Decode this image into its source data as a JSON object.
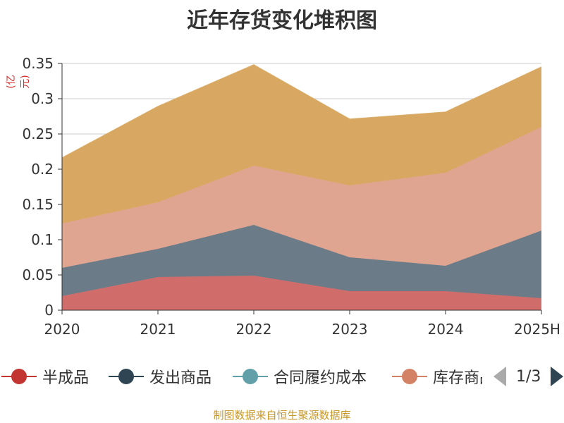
{
  "title": "近年存货变化堆积图",
  "unit_label": "(亿元)",
  "footer": "制图数据来自恒生聚源数据库",
  "legend": {
    "items": [
      {
        "label": "半成品",
        "color": "#c23531"
      },
      {
        "label": "发出商品",
        "color": "#2f4554"
      },
      {
        "label": "合同履约成本",
        "color": "#61a0a8"
      },
      {
        "label": "库存商品",
        "color": "#d48265"
      }
    ],
    "page_text": "1/3"
  },
  "chart_data": {
    "type": "area",
    "stacked": true,
    "title": "近年存货变化堆积图",
    "ylabel": "(亿元)",
    "categories": [
      "2020",
      "2021",
      "2022",
      "2023",
      "2024",
      "2025H"
    ],
    "ylim": [
      0,
      0.35
    ],
    "yticks": [
      "0",
      "0.05",
      "0.1",
      "0.15",
      "0.2",
      "0.25",
      "0.3",
      "0.35"
    ],
    "grid": true,
    "legend_position": "bottom",
    "series": [
      {
        "name": "半成品",
        "color": "#d06d6b",
        "values": [
          0.02,
          0.047,
          0.049,
          0.027,
          0.027,
          0.017
        ]
      },
      {
        "name": "发出商品",
        "color": "#6b7b87",
        "values": [
          0.04,
          0.04,
          0.072,
          0.048,
          0.036,
          0.096
        ]
      },
      {
        "name": "库存商品",
        "color": "#dfa591",
        "values": [
          0.063,
          0.066,
          0.084,
          0.102,
          0.132,
          0.147
        ]
      },
      {
        "name": "",
        "color": "#d8a862",
        "values": [
          0.093,
          0.136,
          0.143,
          0.094,
          0.086,
          0.085
        ]
      }
    ]
  }
}
